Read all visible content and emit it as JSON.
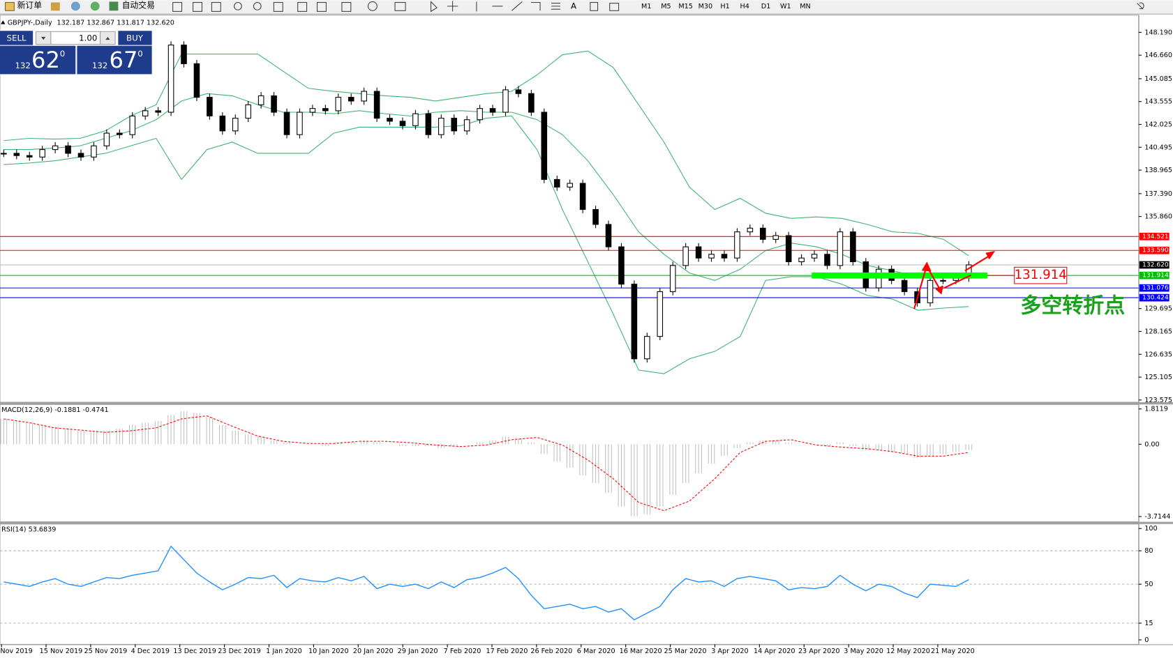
{
  "toolbar": {
    "new_order": "新订单",
    "auto_trading": "自动交易",
    "timeframes": [
      "M1",
      "M5",
      "M15",
      "M30",
      "H1",
      "H4",
      "D1",
      "W1",
      "MN"
    ]
  },
  "trade_panel": {
    "sell": "SELL",
    "lots": "1.00",
    "buy": "BUY",
    "sell_price": {
      "big": "132",
      "pips": "62",
      "frac": "0"
    },
    "buy_price": {
      "big": "132",
      "pips": "67",
      "frac": "0"
    }
  },
  "main": {
    "title": "GBPJPY-,Daily",
    "ohlc": "132.187 132.867 131.817 132.620",
    "ylim": [
      123.575,
      148.19
    ],
    "yticks": [
      {
        "value": 148.19,
        "label": "148.190"
      },
      {
        "value": 146.66,
        "label": "146.660"
      },
      145.085,
      143.555,
      142.025,
      140.495,
      138.965,
      {
        "value": 137.39,
        "label": "137.390"
      },
      {
        "value": 135.86,
        "label": "135.860"
      },
      129.695,
      128.165,
      126.635,
      125.105,
      123.575
    ],
    "closes": [
      140.09,
      139.94,
      139.84,
      140.34,
      140.59,
      140.09,
      139.84,
      140.59,
      141.44,
      141.34,
      142.59,
      142.94,
      142.84,
      147.34,
      146.09,
      143.84,
      142.59,
      141.59,
      142.44,
      143.34,
      143.94,
      142.84,
      141.34,
      142.84,
      143.09,
      142.94,
      143.84,
      143.59,
      144.24,
      142.44,
      142.24,
      141.94,
      142.74,
      141.34,
      142.44,
      141.59,
      142.34,
      143.09,
      142.84,
      144.34,
      144.09,
      142.84,
      138.34,
      137.83,
      138.08,
      136.33,
      135.33,
      133.83,
      131.33,
      126.33,
      127.83,
      130.83,
      132.58,
      133.83,
      133.08,
      133.33,
      133.08,
      134.83,
      135.08,
      134.33,
      134.58,
      132.83,
      133.08,
      133.33,
      132.58,
      134.83,
      132.83,
      131.08,
      132.33,
      131.58,
      130.83,
      130.08,
      131.58,
      131.58,
      131.73,
      132.62
    ],
    "bands": {
      "upper": [
        140.94,
        141.09,
        141.04,
        141.09,
        141.59,
        142.59,
        143.34,
        146.74,
        146.74,
        146.74,
        146.74,
        145.59,
        144.44,
        144.24,
        144.09,
        143.94,
        143.84,
        143.59,
        143.84,
        144.09,
        144.24,
        145.34,
        146.69,
        146.94,
        145.84,
        143.34,
        140.84,
        137.83,
        136.33,
        137.08,
        136.08,
        135.73,
        135.83,
        135.73,
        135.33,
        134.83,
        134.73,
        134.33,
        133.23
      ],
      "middle": [
        140.34,
        140.34,
        140.44,
        140.59,
        141.09,
        141.59,
        142.34,
        143.59,
        144.09,
        143.94,
        143.34,
        142.84,
        142.84,
        142.74,
        142.94,
        142.74,
        142.59,
        142.84,
        142.94,
        142.84,
        142.84,
        142.34,
        141.34,
        139.59,
        137.33,
        134.83,
        133.33,
        132.08,
        131.58,
        132.33,
        133.58,
        134.08,
        133.83,
        133.33,
        132.58,
        132.23,
        131.83,
        131.73,
        131.83
      ],
      "lower": [
        139.34,
        139.44,
        139.59,
        139.84,
        140.09,
        140.59,
        141.09,
        138.34,
        140.34,
        140.84,
        140.09,
        140.09,
        140.09,
        141.44,
        141.84,
        141.84,
        141.84,
        141.84,
        141.94,
        142.44,
        142.59,
        140.34,
        136.33,
        132.83,
        129.33,
        125.58,
        125.33,
        126.33,
        126.83,
        127.83,
        131.58,
        131.83,
        131.83,
        131.33,
        130.58,
        130.33,
        129.58,
        129.73,
        129.83
      ]
    },
    "levels": [
      {
        "value": 134.521,
        "color": "#ff0000"
      },
      {
        "value": 133.59,
        "label": "133.590",
        "color": "#ff0000"
      },
      {
        "value": 132.62,
        "label": "132.620",
        "color": "#000000"
      },
      {
        "value": 131.914,
        "color": "#00c000"
      },
      {
        "value": 131.076,
        "color": "#0000ff"
      },
      {
        "value": 130.424,
        "color": "#0000ff"
      }
    ],
    "note": "多空转折点"
  },
  "macd": {
    "label": "MACD(12,26,9) -0.1881 -0.4741",
    "ylim": [
      -3.7144,
      1.8119
    ],
    "yticks": [
      1.8119,
      {
        "value": 0,
        "label": "0.00"
      },
      -3.7144
    ],
    "histogram": [
      1.3,
      1.2,
      1.1,
      1.0,
      0.9,
      0.8,
      0.7,
      0.7,
      0.7,
      0.8,
      1.0,
      1.1,
      1.2,
      1.5,
      1.7,
      1.6,
      1.4,
      1.0,
      0.7,
      0.5,
      0.4,
      0.2,
      0.1,
      0.0,
      0.0,
      -0.1,
      0.1,
      0.1,
      0.2,
      0.1,
      0.0,
      -0.1,
      -0.1,
      -0.1,
      -0.2,
      -0.1,
      0.0,
      0.1,
      0.2,
      0.4,
      0.3,
      0.1,
      -0.5,
      -0.9,
      -1.2,
      -1.6,
      -2.0,
      -2.5,
      -3.2,
      -3.7,
      -3.6,
      -3.2,
      -2.6,
      -2.0,
      -1.5,
      -1.0,
      -0.6,
      -0.2,
      0.1,
      0.2,
      0.2,
      0.1,
      0.0,
      0.0,
      -0.1,
      0.1,
      -0.1,
      -0.3,
      -0.3,
      -0.4,
      -0.5,
      -0.7,
      -0.6,
      -0.5,
      -0.4,
      -0.3
    ],
    "signal": [
      1.3,
      1.11,
      0.84,
      0.73,
      0.61,
      0.69,
      0.84,
      1.3,
      1.46,
      0.92,
      0.42,
      0.15,
      0.04,
      0.04,
      0.15,
      0.15,
      0.08,
      -0.04,
      -0.12,
      -0.04,
      0.23,
      0.35,
      -0.04,
      -0.81,
      -1.77,
      -2.99,
      -3.41,
      -2.92,
      -1.77,
      -0.42,
      0.15,
      0.23,
      -0.04,
      -0.15,
      -0.23,
      -0.38,
      -0.61,
      -0.61,
      -0.42
    ]
  },
  "rsi": {
    "label": "RSI(14) 53.6839",
    "ylim": [
      0,
      100
    ],
    "yticks": [
      100,
      80,
      50,
      15,
      0
    ],
    "values": [
      52,
      50,
      48,
      52,
      55,
      50,
      48,
      52,
      56,
      55,
      58,
      60,
      62,
      84,
      72,
      60,
      52,
      45,
      50,
      56,
      55,
      58,
      47,
      55,
      53,
      52,
      56,
      53,
      57,
      46,
      50,
      48,
      50,
      46,
      52,
      47,
      54,
      56,
      60,
      65,
      55,
      40,
      28,
      30,
      32,
      28,
      30,
      25,
      28,
      18,
      24,
      30,
      45,
      55,
      52,
      53,
      48,
      55,
      57,
      55,
      53,
      45,
      47,
      46,
      48,
      58,
      50,
      44,
      50,
      48,
      42,
      38,
      50,
      49,
      48,
      54
    ]
  },
  "dates": [
    "Nov 2019",
    "15 Nov 2019",
    "25 Nov 2019",
    "4 Dec 2019",
    "13 Dec 2019",
    "23 Dec 2019",
    "1 Jan 2020",
    "10 Jan 2020",
    "20 Jan 2020",
    "29 Jan 2020",
    "7 Feb 2020",
    "17 Feb 2020",
    "26 Feb 2020",
    "6 Mar 2020",
    "16 Mar 2020",
    "25 Mar 2020",
    "3 Apr 2020",
    "14 Apr 2020",
    "23 Apr 2020",
    "3 May 2020",
    "12 May 2020",
    "21 May 2020"
  ]
}
